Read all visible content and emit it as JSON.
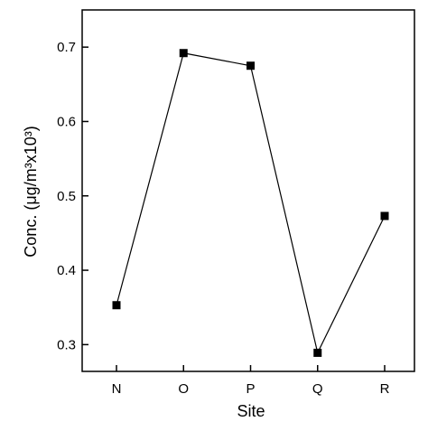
{
  "chart_data": {
    "type": "line",
    "categories": [
      "N",
      "O",
      "P",
      "Q",
      "R"
    ],
    "series": [
      {
        "values": [
          0.353,
          0.692,
          0.675,
          0.289,
          0.473
        ]
      }
    ],
    "xlabel": "Site",
    "ylabel": "Conc. (μg/m³x10³)",
    "ylim": [
      0.264,
      0.75
    ],
    "yticks": [
      "0.3",
      "0.4",
      "0.5",
      "0.6",
      "0.7"
    ],
    "marker": "square",
    "grid": false,
    "colors": {
      "line": "#000000",
      "marker": "#000000"
    }
  }
}
